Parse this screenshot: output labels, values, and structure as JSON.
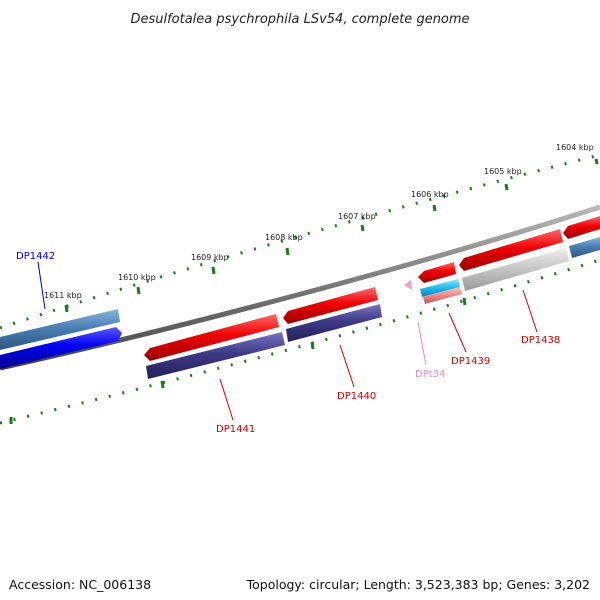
{
  "title": "Desulfotalea psychrophila LSv54, complete genome",
  "footer": {
    "accession": "Accession: NC_006138",
    "topology": "Topology: circular; Length: 3,523,383 bp; Genes: 3,202"
  },
  "scale_labels": [
    "1604 kbp",
    "1605 kbp",
    "1606 kbp",
    "1607 kbp",
    "1608 kbp",
    "1609 kbp",
    "1610 kbp",
    "1611 kbp"
  ],
  "genes": [
    {
      "id": "DP1442",
      "color": "#0000cc",
      "bar_color": "#0000ee"
    },
    {
      "id": "DP1441",
      "color": "#cc0000",
      "bar_color": "#ee0000"
    },
    {
      "id": "DP1440",
      "color": "#cc0000",
      "bar_color": "#ee0000"
    },
    {
      "id": "DPt34",
      "color": "#ee88cc",
      "bar_color": "#ff99cc"
    },
    {
      "id": "DP1439",
      "color": "#cc0000",
      "bar_color": "#ee0000"
    },
    {
      "id": "DP1438",
      "color": "#cc0000",
      "bar_color": "#ee0000"
    }
  ],
  "colors": {
    "backbone": "#777777",
    "scale_ticks": "#1a7a1a",
    "cog_blue": "#4a7fb5",
    "cog_purple": "#3f3a86",
    "cog_gray": "#c8c8c8",
    "cog_cyan": "#22bbee",
    "cog_pink": "#ee8888"
  }
}
